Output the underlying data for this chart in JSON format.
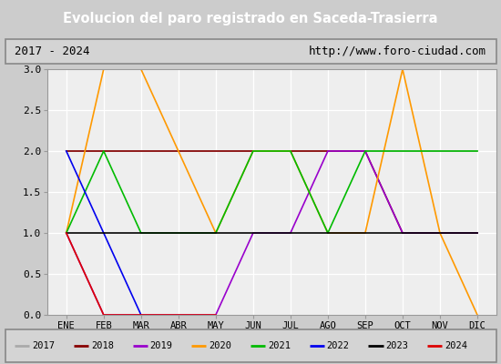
{
  "title": "Evolucion del paro registrado en Saceda-Trasierra",
  "subtitle_left": "2017 - 2024",
  "subtitle_right": "http://www.foro-ciudad.com",
  "xlabel_months": [
    "ENE",
    "FEB",
    "MAR",
    "ABR",
    "MAY",
    "JUN",
    "JUL",
    "AGO",
    "SEP",
    "OCT",
    "NOV",
    "DIC"
  ],
  "ylim": [
    0.0,
    3.0
  ],
  "yticks": [
    0.0,
    0.5,
    1.0,
    1.5,
    2.0,
    2.5,
    3.0
  ],
  "title_bg": "#4477cc",
  "title_color": "white",
  "axes_bg": "#eeeeee",
  "outer_bg": "#cccccc",
  "series": [
    {
      "year": "2017",
      "color": "#aaaaaa",
      "months": [
        1,
        12
      ],
      "values": [
        2,
        2
      ]
    },
    {
      "year": "2018",
      "color": "#880000",
      "months": [
        1,
        2,
        3,
        4,
        5,
        6,
        7,
        8,
        9,
        10,
        11,
        12
      ],
      "values": [
        2,
        2,
        2,
        2,
        2,
        2,
        2,
        2,
        2,
        1,
        1,
        1
      ]
    },
    {
      "year": "2019",
      "color": "#9900cc",
      "months": [
        1,
        2,
        3,
        4,
        5,
        6,
        7,
        8,
        9,
        10,
        11,
        12
      ],
      "values": [
        1,
        0,
        0,
        0,
        0,
        1,
        1,
        2,
        2,
        1,
        1,
        1
      ]
    },
    {
      "year": "2020",
      "color": "#ff9900",
      "months": [
        1,
        2,
        3,
        4,
        5,
        6,
        7,
        8,
        9,
        10,
        11,
        12
      ],
      "values": [
        1,
        3,
        3,
        2,
        1,
        2,
        2,
        1,
        1,
        3,
        1,
        0
      ]
    },
    {
      "year": "2021",
      "color": "#00bb00",
      "months": [
        1,
        2,
        3,
        4,
        5,
        6,
        7,
        8,
        9,
        10,
        11,
        12
      ],
      "values": [
        1,
        2,
        1,
        1,
        1,
        2,
        2,
        1,
        2,
        2,
        2,
        2
      ]
    },
    {
      "year": "2022",
      "color": "#0000ee",
      "months": [
        1,
        2,
        3
      ],
      "values": [
        2,
        1,
        0
      ]
    },
    {
      "year": "2023",
      "color": "#000000",
      "months": [
        1,
        2,
        3,
        4,
        5,
        6,
        7,
        8,
        9,
        10,
        11,
        12
      ],
      "values": [
        1,
        1,
        1,
        1,
        1,
        1,
        1,
        1,
        1,
        1,
        1,
        1
      ]
    },
    {
      "year": "2024",
      "color": "#dd0000",
      "months": [
        1,
        2,
        3,
        4,
        5
      ],
      "values": [
        1,
        0,
        0,
        0,
        0
      ]
    }
  ],
  "legend_order": [
    "2017",
    "2018",
    "2019",
    "2020",
    "2021",
    "2022",
    "2023",
    "2024"
  ]
}
